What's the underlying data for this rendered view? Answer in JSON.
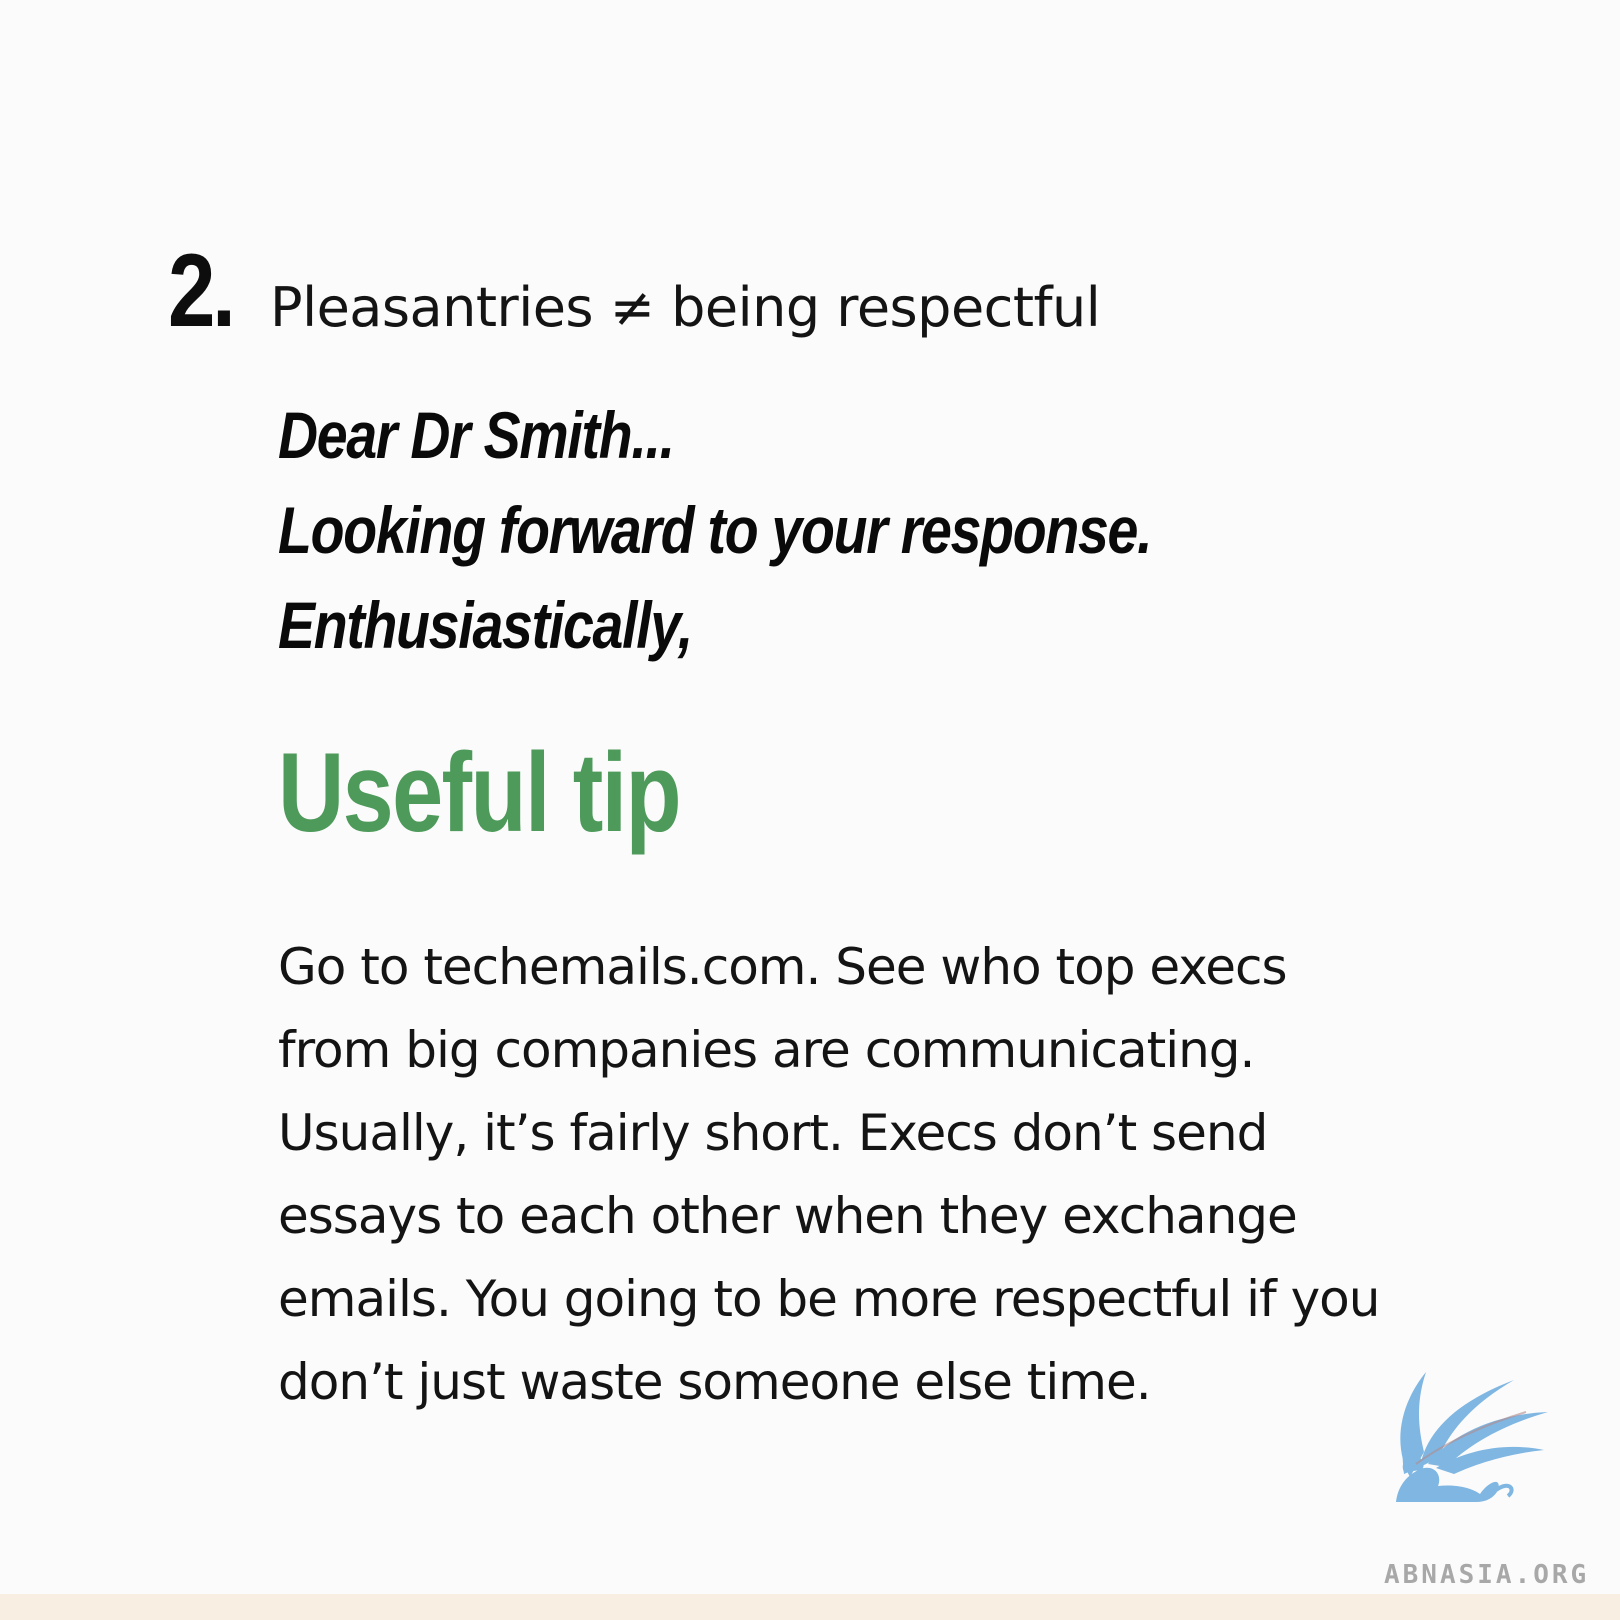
{
  "section": {
    "number": "2.",
    "title": "Pleasantries ≠ being respectful"
  },
  "examples": [
    "Dear Dr Smith...",
    "Looking forward to your response.",
    "Enthusiastically,"
  ],
  "tip": {
    "title": "Useful tip",
    "lines": [
      "Go to techemails.com. See who top execs",
      "from big companies are communicating.",
      "Usually, it’s fairly short. Execs don’t send",
      "essays to each other when they exchange",
      "emails. You going to be more respectful if you",
      "don’t just waste someone else time."
    ]
  },
  "brand": {
    "logo_icon": "griffin-logo-icon",
    "text": "ABNASIA.ORG",
    "logo_color": "#7fb6e2",
    "accent_color": "#4d9a5a"
  }
}
